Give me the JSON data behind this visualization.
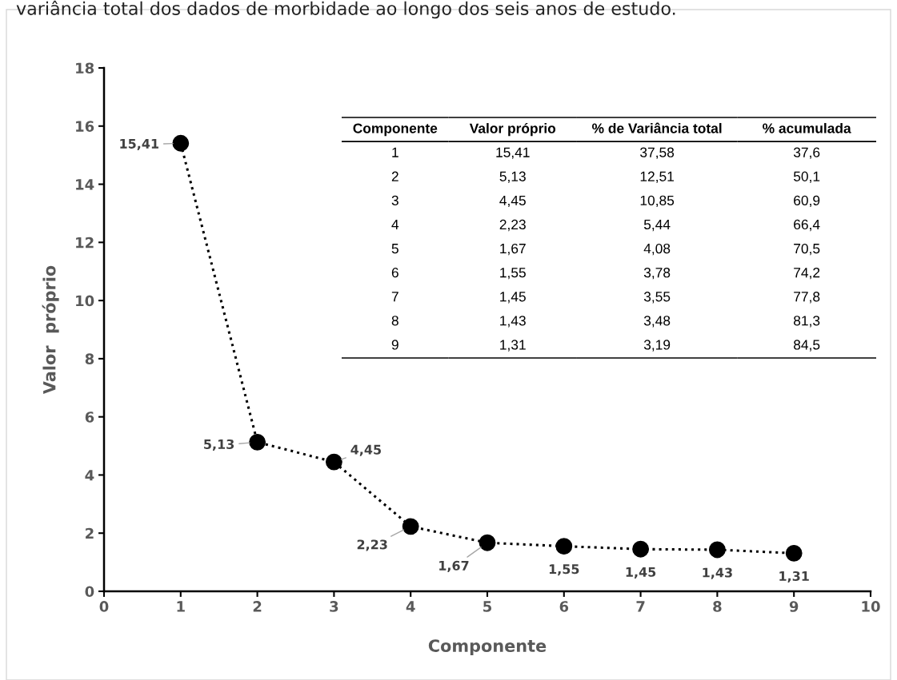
{
  "chart_data": {
    "type": "line",
    "title": "variância total dos dados de morbidade ao longo dos seis anos de estudo.",
    "xlabel": "Componente",
    "ylabel": "Valor  próprio",
    "x": [
      1,
      2,
      3,
      4,
      5,
      6,
      7,
      8,
      9
    ],
    "series": [
      {
        "color": "#000000",
        "values": [
          15.41,
          5.13,
          4.45,
          2.23,
          1.67,
          1.55,
          1.45,
          1.43,
          1.31
        ],
        "value_labels": [
          "15,41",
          "5,13",
          "4,45",
          "2,23",
          "1,67",
          "1,55",
          "1,45",
          "1,43",
          "1,31"
        ]
      }
    ],
    "marker": "circle",
    "line_style": "dotted",
    "grid": false,
    "legend": false,
    "xlim": [
      0,
      10
    ],
    "xticks": [
      0,
      1,
      2,
      3,
      4,
      5,
      6,
      7,
      8,
      9,
      10
    ],
    "ylim": [
      0,
      18
    ],
    "yticks": [
      0,
      2,
      4,
      6,
      8,
      10,
      12,
      14,
      16,
      18
    ],
    "annotations": [
      "Componente",
      "Valor próprio",
      "% de Variância total",
      "% acumulada",
      "1",
      "15,41",
      "37,58",
      "37,6",
      "2",
      "5,13",
      "12,51",
      "50,1",
      "3",
      "4,45",
      "10,85",
      "60,9",
      "4",
      "2,23",
      "5,44",
      "66,4",
      "5",
      "1,67",
      "4,08",
      "70,5",
      "6",
      "1,55",
      "3,78",
      "74,2",
      "7",
      "1,45",
      "3,55",
      "77,8",
      "8",
      "1,43",
      "3,48",
      "81,3",
      "9",
      "1,31",
      "3,19",
      "84,5"
    ]
  }
}
